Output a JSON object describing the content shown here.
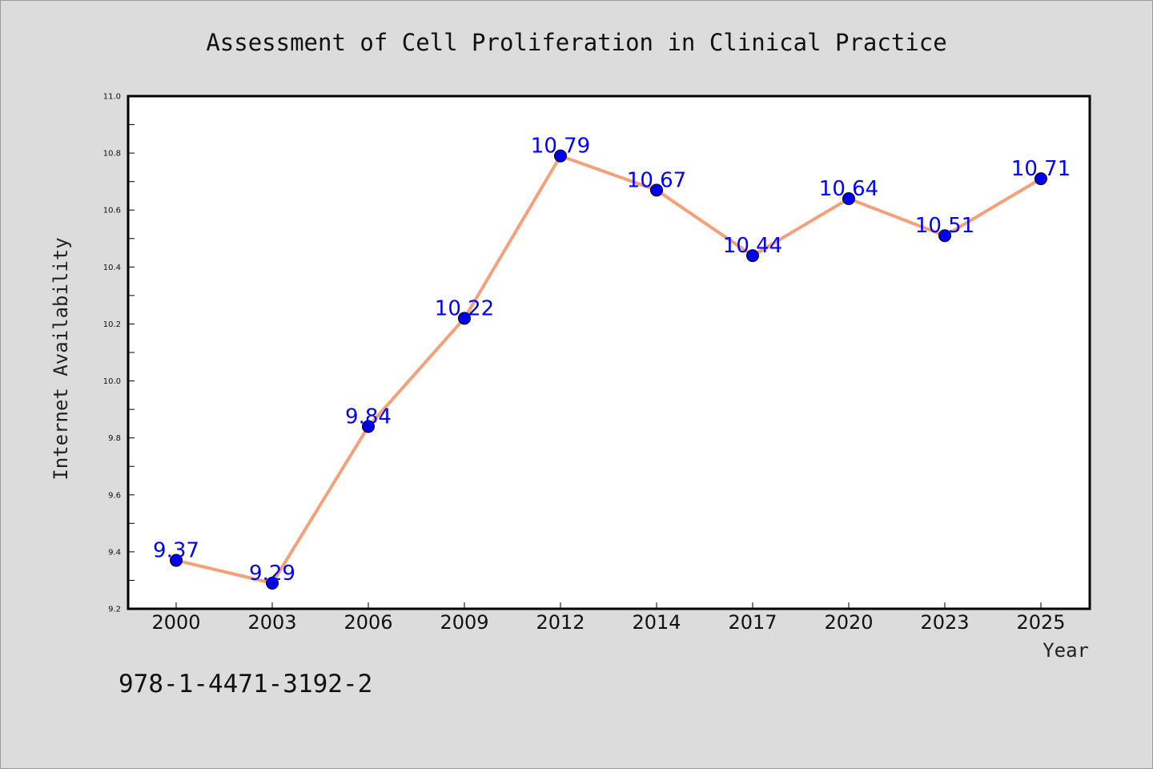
{
  "chart_data": {
    "type": "line",
    "title": "Assessment of Cell Proliferation in Clinical Practice",
    "xlabel": "Year",
    "ylabel": "Internet Availability",
    "categories": [
      "2000",
      "2003",
      "2006",
      "2009",
      "2012",
      "2014",
      "2017",
      "2020",
      "2023",
      "2025"
    ],
    "values": [
      9.37,
      9.29,
      9.84,
      10.22,
      10.79,
      10.67,
      10.44,
      10.64,
      10.51,
      10.71
    ],
    "data_labels": [
      "9.37",
      "9.29",
      "9.84",
      "10.22",
      "10.79",
      "10.67",
      "10.44",
      "10.64",
      "10.51",
      "10.71"
    ],
    "ylim": [
      9.2,
      11.0
    ],
    "yticks": [
      "9.2",
      "9.4",
      "9.6",
      "9.8",
      "10.0",
      "10.2",
      "10.4",
      "10.6",
      "10.8",
      "11.0"
    ],
    "grid": false,
    "legend": "none",
    "line_color": "#f4a07a",
    "marker_color": "#0000ee",
    "label_color": "#0000ff"
  },
  "annotation": "978-1-4471-3192-2"
}
